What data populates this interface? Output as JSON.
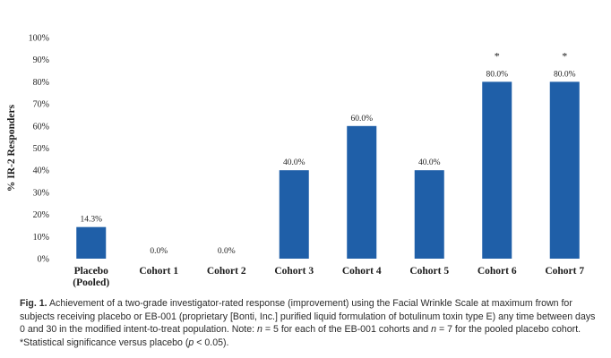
{
  "chart_data": {
    "type": "bar",
    "categories": [
      [
        "Placebo",
        "(Pooled)"
      ],
      [
        "Cohort 1"
      ],
      [
        "Cohort 2"
      ],
      [
        "Cohort 3"
      ],
      [
        "Cohort 4"
      ],
      [
        "Cohort 5"
      ],
      [
        "Cohort 6"
      ],
      [
        "Cohort 7"
      ]
    ],
    "values": [
      14.3,
      0.0,
      0.0,
      40.0,
      60.0,
      40.0,
      80.0,
      80.0
    ],
    "value_labels": [
      "14.3%",
      "0.0%",
      "0.0%",
      "40.0%",
      "60.0%",
      "40.0%",
      "80.0%",
      "80.0%"
    ],
    "significance_markers": [
      "",
      "",
      "",
      "",
      "",
      "",
      "*",
      "*"
    ],
    "ylabel": "% IR-2 Responders",
    "ylim": [
      0,
      100
    ],
    "yticks": [
      0,
      10,
      20,
      30,
      40,
      50,
      60,
      70,
      80,
      90,
      100
    ],
    "ytick_labels": [
      "0%",
      "10%",
      "20%",
      "30%",
      "40%",
      "50%",
      "60%",
      "70%",
      "80%",
      "90%",
      "100%"
    ],
    "grid": false,
    "legend": "none",
    "bar_color": "#1f5fa8"
  },
  "caption": {
    "label": "Fig. 1.",
    "part1": " Achievement of a two-grade investigator-rated response (improvement) using the Facial Wrinkle Scale at maximum frown for subjects receiving placebo or EB-001 (proprietary [Bonti, Inc.] purified liquid formulation of botulinum toxin type E) any time between days 0 and 30 in the modified intent-to-treat population. Note: ",
    "n1": "n",
    "part2": " = 5 for each of the EB-001 cohorts and ",
    "n2": "n",
    "part3": " = 7 for the pooled placebo cohort. *Statistical significance versus placebo (",
    "p": "p",
    "part4": " < 0.05)."
  }
}
